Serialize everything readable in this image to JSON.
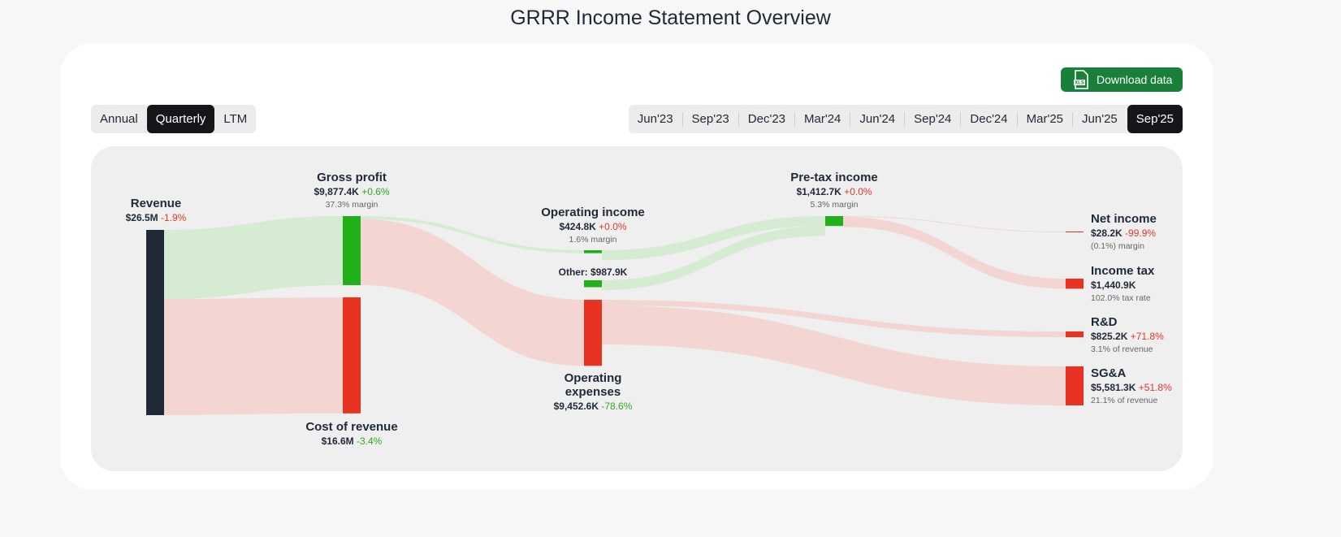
{
  "title": "GRRR Income Statement Overview",
  "download_button": "Download data",
  "period_tabs": {
    "options": [
      "Annual",
      "Quarterly",
      "LTM"
    ],
    "selected": 1
  },
  "date_tabs": {
    "options": [
      "Jun'23",
      "Sep'23",
      "Dec'23",
      "Mar'24",
      "Jun'24",
      "Sep'24",
      "Dec'24",
      "Mar'25",
      "Jun'25",
      "Sep'25"
    ],
    "selected": 9
  },
  "chart_data": {
    "type": "sankey",
    "nodes": [
      {
        "name": "Revenue",
        "value": 26500000,
        "value_label": "$26.5M",
        "change": "-1.9%",
        "change_color": "#e0392b",
        "color": "#1f2937"
      },
      {
        "name": "Gross profit",
        "value": 9877400,
        "value_label": "$9,877.4K",
        "change": "+0.6%",
        "change_color": "#2eaa1f",
        "note": "37.3% margin",
        "color": "#22b01a"
      },
      {
        "name": "Cost of revenue",
        "value": 16600000,
        "value_label": "$16.6M",
        "change": "-3.4%",
        "change_color": "#2eaa1f",
        "color": "#e83323"
      },
      {
        "name": "Operating income",
        "value": 424800,
        "value_label": "$424.8K",
        "change": "+0.0%",
        "change_color": "#e0392b",
        "note": "1.6% margin",
        "color": "#22b01a"
      },
      {
        "value": 987900,
        "value_label": "Other: $987.9K",
        "color": "#22b01a"
      },
      {
        "name": "Operating expenses",
        "value": 9452600,
        "value_label": "$9,452.6K",
        "change": "-78.6%",
        "change_color": "#2eaa1f",
        "color": "#e83323"
      },
      {
        "name": "Pre-tax income",
        "value": 1412700,
        "value_label": "$1,412.7K",
        "change": "+0.0%",
        "change_color": "#e0392b",
        "note": "5.3% margin",
        "color": "#22b01a"
      },
      {
        "name": "Net income",
        "value": 28200,
        "value_label": "$28.2K",
        "change": "-99.9%",
        "change_color": "#e0392b",
        "note": "(0.1%) margin",
        "color": "#e83323"
      },
      {
        "name": "Income tax",
        "value": 1440900,
        "value_label": "$1,440.9K",
        "note": "102.0% tax rate",
        "color": "#e83323"
      },
      {
        "name": "R&D",
        "value": 825200,
        "value_label": "$825.2K",
        "change": "+71.8%",
        "change_color": "#e0392b",
        "note": "3.1% of revenue",
        "color": "#e83323"
      },
      {
        "name": "SG&A",
        "value": 5581300,
        "value_label": "$5,581.3K",
        "change": "+51.8%",
        "change_color": "#e0392b",
        "note": "21.1% of revenue",
        "color": "#e83323"
      }
    ]
  }
}
